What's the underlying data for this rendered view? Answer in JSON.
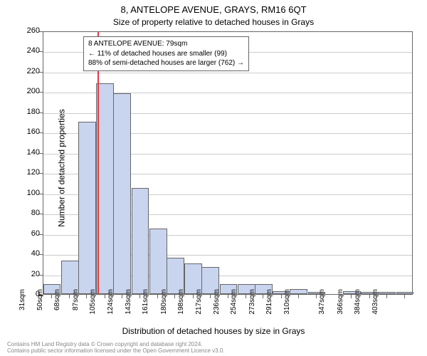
{
  "chart": {
    "type": "histogram",
    "title": "8, ANTELOPE AVENUE, GRAYS, RM16 6QT",
    "subtitle": "Size of property relative to detached houses in Grays",
    "x_axis_label": "Distribution of detached houses by size in Grays",
    "y_axis_label": "Number of detached properties",
    "background_color": "#ffffff",
    "bar_fill": "#c9d4ef",
    "bar_border": "#666666",
    "grid_color": "#cccccc",
    "axis_color": "#666666",
    "marker_color": "#e63946",
    "marker_value": 79,
    "x_min": 22,
    "x_max": 412,
    "bar_width_sqm": 18.6,
    "ylim": [
      0,
      260
    ],
    "ytick_step": 20,
    "x_tick_labels": [
      "31sqm",
      "50sqm",
      "68sqm",
      "87sqm",
      "105sqm",
      "124sqm",
      "143sqm",
      "161sqm",
      "180sqm",
      "198sqm",
      "217sqm",
      "236sqm",
      "254sqm",
      "273sqm",
      "291sqm",
      "310sqm",
      "347sqm",
      "366sqm",
      "384sqm",
      "403sqm"
    ],
    "x_tick_positions": [
      31,
      50,
      68,
      87,
      105,
      124,
      143,
      161,
      180,
      198,
      217,
      236,
      254,
      273,
      291,
      310,
      347,
      366,
      384,
      403
    ],
    "bars": [
      {
        "x": 31,
        "y": 10
      },
      {
        "x": 50,
        "y": 33
      },
      {
        "x": 68,
        "y": 170
      },
      {
        "x": 87,
        "y": 208
      },
      {
        "x": 105,
        "y": 198
      },
      {
        "x": 124,
        "y": 105
      },
      {
        "x": 143,
        "y": 65
      },
      {
        "x": 161,
        "y": 36
      },
      {
        "x": 180,
        "y": 30
      },
      {
        "x": 198,
        "y": 27
      },
      {
        "x": 217,
        "y": 10
      },
      {
        "x": 236,
        "y": 10
      },
      {
        "x": 254,
        "y": 10
      },
      {
        "x": 273,
        "y": 3
      },
      {
        "x": 291,
        "y": 5
      },
      {
        "x": 310,
        "y": 2
      },
      {
        "x": 347,
        "y": 3
      },
      {
        "x": 366,
        "y": 2
      },
      {
        "x": 384,
        "y": 2
      },
      {
        "x": 403,
        "y": 2
      }
    ],
    "annotation": {
      "line1": "8 ANTELOPE AVENUE: 79sqm",
      "line2": "← 11% of detached houses are smaller (99)",
      "line3": "88% of semi-detached houses are larger (762) →"
    },
    "footer_line1": "Contains HM Land Registry data © Crown copyright and database right 2024.",
    "footer_line2": "Contains public sector information licensed under the Open Government Licence v3.0.",
    "title_fontsize": 13,
    "subtitle_fontsize": 12,
    "axis_label_fontsize": 12,
    "tick_fontsize": 10,
    "annotation_fontsize": 10,
    "footer_fontsize": 8
  }
}
